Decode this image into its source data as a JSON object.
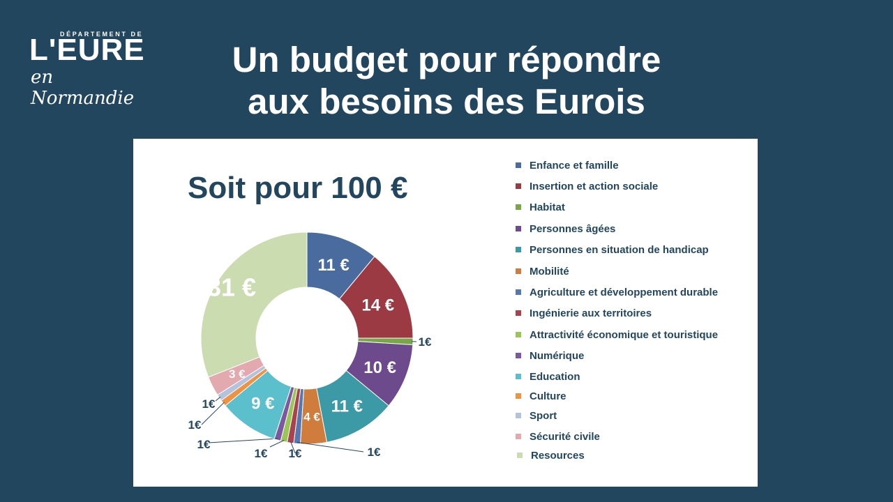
{
  "header": {
    "logo": {
      "department_prefix": "DÉPARTEMENT DE",
      "name": "L'EURE",
      "region": "en Normandie"
    },
    "title_line1": "Un budget pour répondre",
    "title_line2": "aux besoins des Eurois"
  },
  "colors": {
    "background": "#23465f",
    "panel": "#ffffff",
    "text": "#23465f"
  },
  "chart_data": {
    "type": "pie",
    "title": "Soit pour 100 €",
    "donut": true,
    "legend_position": "right",
    "categories": [
      "Enfance et famille",
      "Insertion et action sociale",
      "Habitat",
      "Personnes âgées",
      "Personnes en situation de handicap",
      "Mobilité",
      "Agriculture et développement durable",
      "Ingénierie aux territoires",
      "Attractivité économique et touristique",
      "Numérique",
      "Education",
      "Culture",
      "Sport",
      "Sécurité civile",
      "Resources"
    ],
    "values": [
      11,
      14,
      1,
      10,
      11,
      4,
      1,
      1,
      1,
      1,
      9,
      1,
      1,
      3,
      31
    ],
    "labels": [
      "11 €",
      "14 €",
      "1€",
      "10 €",
      "11 €",
      "4 €",
      "1€",
      "1€",
      "1€",
      "1€",
      "9 €",
      "1€",
      "1€",
      "3 €",
      "31 €"
    ],
    "colors": [
      "#4a6b9e",
      "#9b3a43",
      "#78a747",
      "#6c4a8c",
      "#3c9aa6",
      "#d07c3c",
      "#5678b0",
      "#a9424d",
      "#9cc558",
      "#7b58a0",
      "#5bc0cc",
      "#ee9243",
      "#b3c3de",
      "#e2a9af",
      "#cbdcb1"
    ]
  }
}
